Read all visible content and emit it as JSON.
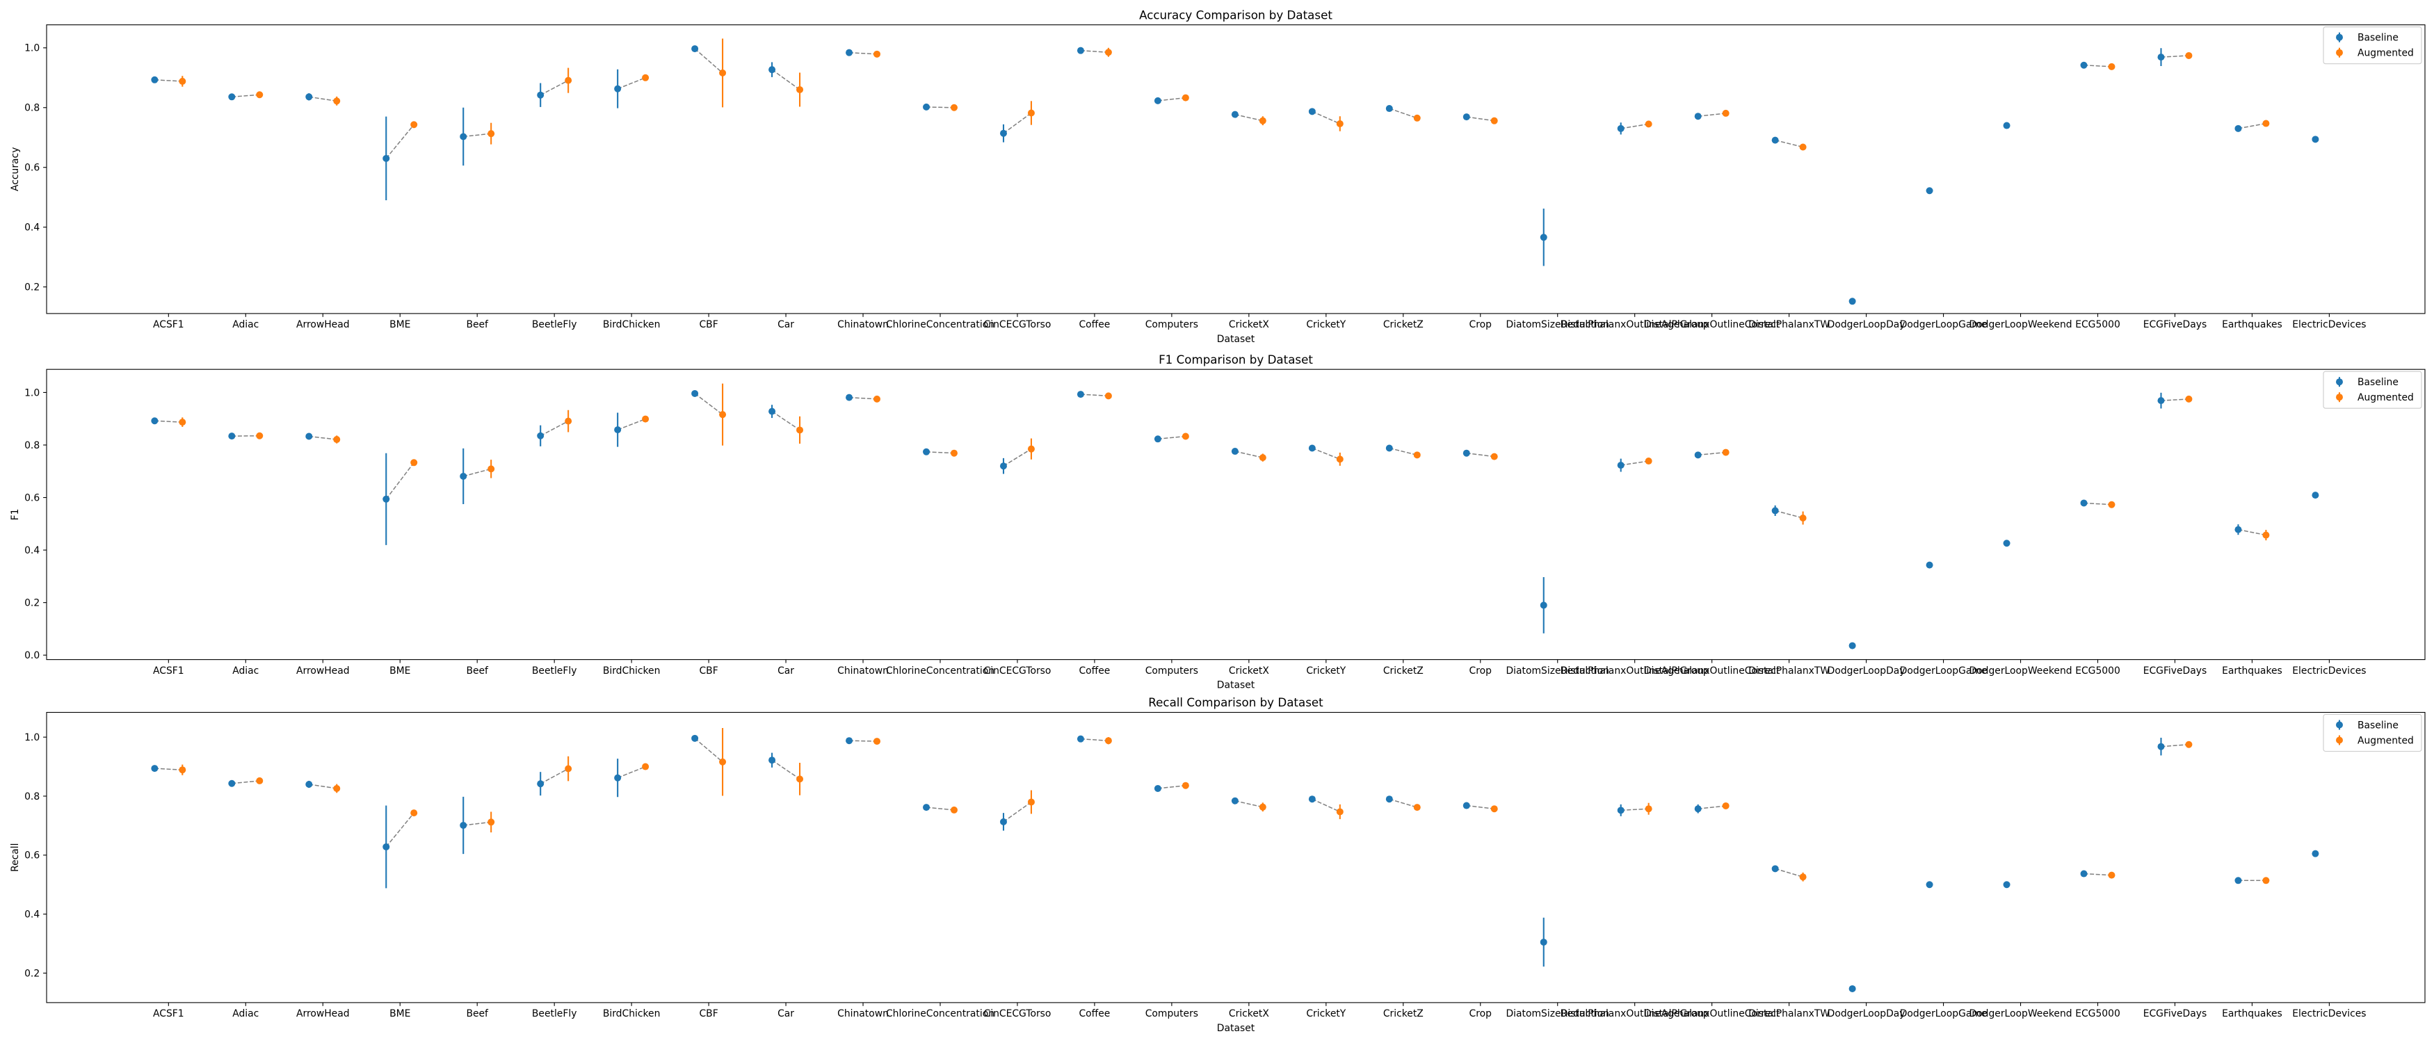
{
  "chart_data": [
    {
      "type": "scatter",
      "title": "Accuracy Comparison by Dataset",
      "xlabel": "Dataset",
      "ylabel": "Accuracy",
      "ylim": [
        0.111,
        1.077
      ],
      "yticks": [
        "0.2",
        "0.4",
        "0.6",
        "0.8",
        "1.0"
      ],
      "grid": false,
      "legend": "top-right",
      "connector_color": "#808080",
      "categories": [
        "ACSF1",
        "Adiac",
        "ArrowHead",
        "BME",
        "Beef",
        "BeetleFly",
        "BirdChicken",
        "CBF",
        "Car",
        "Chinatown",
        "ChlorineConcentration",
        "CinCECGTorso",
        "Coffee",
        "Computers",
        "CricketX",
        "CricketY",
        "CricketZ",
        "Crop",
        "DiatomSizeReduction",
        "DistalPhalanxOutlineAgeGroup",
        "DistalPhalanxOutlineCorrect",
        "DistalPhalanxTW",
        "DodgerLoopDay",
        "DodgerLoopGame",
        "DodgerLoopWeekend",
        "ECG5000",
        "ECGFiveDays",
        "Earthquakes",
        "ElectricDevices"
      ],
      "series": [
        {
          "name": "Baseline",
          "color": "#1f77b4",
          "values": [
            0.893,
            0.836,
            0.836,
            0.63,
            0.703,
            0.842,
            0.863,
            0.997,
            0.927,
            0.984,
            0.802,
            0.714,
            0.991,
            0.823,
            0.777,
            0.787,
            0.797,
            0.769,
            0.366,
            0.73,
            0.771,
            0.691,
            0.152,
            0.522,
            0.74,
            0.942,
            0.969,
            0.73,
            0.694
          ],
          "errors": [
            0.004,
            0.005,
            0.012,
            0.14,
            0.097,
            0.04,
            0.065,
            0.004,
            0.025,
            0.004,
            0.004,
            0.03,
            0.01,
            0.005,
            0.006,
            0.006,
            0.005,
            0.004,
            0.096,
            0.02,
            0.01,
            0.008,
            0.0,
            0.0,
            0.0,
            0.004,
            0.03,
            0.006,
            0.0
          ]
        },
        {
          "name": "Augmented",
          "color": "#ff7f0e",
          "values": [
            0.888,
            0.843,
            0.822,
            0.743,
            0.713,
            0.891,
            0.9,
            0.916,
            0.86,
            0.979,
            0.8,
            0.782,
            0.985,
            0.833,
            0.756,
            0.746,
            0.765,
            0.756,
            null,
            0.745,
            0.781,
            0.668,
            null,
            null,
            null,
            0.937,
            0.974,
            0.747,
            null
          ],
          "errors": [
            0.018,
            0.005,
            0.015,
            0.005,
            0.036,
            0.042,
            0.008,
            0.115,
            0.057,
            0.005,
            0.005,
            0.04,
            0.015,
            0.006,
            0.015,
            0.025,
            0.008,
            0.005,
            null,
            0.01,
            0.008,
            0.008,
            null,
            null,
            null,
            0.005,
            0.008,
            0.006,
            null
          ]
        }
      ]
    },
    {
      "type": "scatter",
      "title": "F1 Comparison by Dataset",
      "xlabel": "Dataset",
      "ylabel": "F1",
      "ylim": [
        -0.017,
        1.088
      ],
      "yticks": [
        "0.0",
        "0.2",
        "0.4",
        "0.6",
        "0.8",
        "1.0"
      ],
      "grid": false,
      "legend": "top-right",
      "connector_color": "#808080",
      "categories": [
        "ACSF1",
        "Adiac",
        "ArrowHead",
        "BME",
        "Beef",
        "BeetleFly",
        "BirdChicken",
        "CBF",
        "Car",
        "Chinatown",
        "ChlorineConcentration",
        "CinCECGTorso",
        "Coffee",
        "Computers",
        "CricketX",
        "CricketY",
        "CricketZ",
        "Crop",
        "DiatomSizeReduction",
        "DistalPhalanxOutlineAgeGroup",
        "DistalPhalanxOutlineCorrect",
        "DistalPhalanxTW",
        "DodgerLoopDay",
        "DodgerLoopGame",
        "DodgerLoopWeekend",
        "ECG5000",
        "ECGFiveDays",
        "Earthquakes",
        "ElectricDevices"
      ],
      "series": [
        {
          "name": "Baseline",
          "color": "#1f77b4",
          "values": [
            0.892,
            0.834,
            0.833,
            0.594,
            0.681,
            0.835,
            0.858,
            0.996,
            0.928,
            0.981,
            0.774,
            0.72,
            0.993,
            0.823,
            0.776,
            0.788,
            0.788,
            0.769,
            0.19,
            0.723,
            0.762,
            0.55,
            0.036,
            0.343,
            0.426,
            0.579,
            0.969,
            0.478,
            0.609
          ],
          "errors": [
            0.004,
            0.005,
            0.012,
            0.175,
            0.106,
            0.04,
            0.065,
            0.004,
            0.025,
            0.004,
            0.004,
            0.03,
            0.006,
            0.005,
            0.006,
            0.006,
            0.005,
            0.004,
            0.107,
            0.025,
            0.01,
            0.02,
            0.0,
            0.0,
            0.0,
            0.004,
            0.03,
            0.02,
            0.0
          ]
        },
        {
          "name": "Augmented",
          "color": "#ff7f0e",
          "values": [
            0.887,
            0.835,
            0.821,
            0.733,
            0.709,
            0.891,
            0.899,
            0.916,
            0.857,
            0.975,
            0.769,
            0.785,
            0.987,
            0.833,
            0.752,
            0.746,
            0.762,
            0.756,
            null,
            0.739,
            0.772,
            0.522,
            null,
            null,
            null,
            0.573,
            0.975,
            0.457,
            null
          ],
          "errors": [
            0.018,
            0.005,
            0.015,
            0.005,
            0.035,
            0.042,
            0.008,
            0.118,
            0.052,
            0.005,
            0.005,
            0.04,
            0.012,
            0.006,
            0.015,
            0.025,
            0.008,
            0.005,
            null,
            0.008,
            0.008,
            0.025,
            null,
            null,
            null,
            0.005,
            0.008,
            0.02,
            null
          ]
        }
      ]
    },
    {
      "type": "scatter",
      "title": "Recall Comparison by Dataset",
      "xlabel": "Dataset",
      "ylabel": "Recall",
      "ylim": [
        0.1,
        1.084
      ],
      "yticks": [
        "0.2",
        "0.4",
        "0.6",
        "0.8",
        "1.0"
      ],
      "grid": false,
      "legend": "top-right",
      "connector_color": "#808080",
      "categories": [
        "ACSF1",
        "Adiac",
        "ArrowHead",
        "BME",
        "Beef",
        "BeetleFly",
        "BirdChicken",
        "CBF",
        "Car",
        "Chinatown",
        "ChlorineConcentration",
        "CinCECGTorso",
        "Coffee",
        "Computers",
        "CricketX",
        "CricketY",
        "CricketZ",
        "Crop",
        "DiatomSizeReduction",
        "DistalPhalanxOutlineAgeGroup",
        "DistalPhalanxOutlineCorrect",
        "DistalPhalanxTW",
        "DodgerLoopDay",
        "DodgerLoopGame",
        "DodgerLoopWeekend",
        "ECG5000",
        "ECGFiveDays",
        "Earthquakes",
        "ElectricDevices"
      ],
      "series": [
        {
          "name": "Baseline",
          "color": "#1f77b4",
          "values": [
            0.894,
            0.843,
            0.84,
            0.628,
            0.701,
            0.842,
            0.862,
            0.996,
            0.922,
            0.988,
            0.762,
            0.713,
            0.994,
            0.826,
            0.784,
            0.79,
            0.79,
            0.768,
            0.305,
            0.752,
            0.757,
            0.554,
            0.147,
            0.5,
            0.5,
            0.537,
            0.968,
            0.514,
            0.605
          ],
          "errors": [
            0.004,
            0.005,
            0.012,
            0.14,
            0.097,
            0.04,
            0.065,
            0.004,
            0.025,
            0.004,
            0.004,
            0.03,
            0.006,
            0.005,
            0.006,
            0.006,
            0.005,
            0.004,
            0.083,
            0.02,
            0.015,
            0.008,
            0.0,
            0.0,
            0.0,
            0.004,
            0.03,
            0.006,
            0.0
          ]
        },
        {
          "name": "Augmented",
          "color": "#ff7f0e",
          "values": [
            0.889,
            0.852,
            0.826,
            0.743,
            0.712,
            0.893,
            0.9,
            0.916,
            0.858,
            0.986,
            0.753,
            0.78,
            0.988,
            0.836,
            0.763,
            0.747,
            0.762,
            0.757,
            null,
            0.757,
            0.767,
            0.526,
            null,
            null,
            null,
            0.532,
            0.975,
            0.514,
            null
          ],
          "errors": [
            0.018,
            0.005,
            0.015,
            0.005,
            0.035,
            0.042,
            0.008,
            0.115,
            0.055,
            0.005,
            0.005,
            0.04,
            0.012,
            0.006,
            0.015,
            0.025,
            0.008,
            0.005,
            null,
            0.02,
            0.008,
            0.015,
            null,
            null,
            null,
            0.005,
            0.008,
            0.006,
            null
          ]
        }
      ]
    }
  ]
}
